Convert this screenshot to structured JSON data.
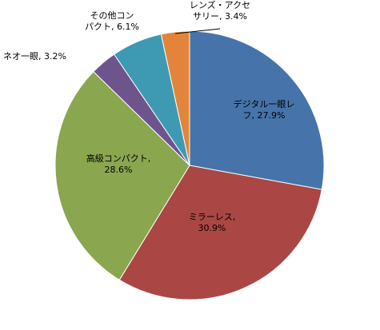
{
  "chart_data": {
    "type": "pie",
    "title": "",
    "slices": [
      {
        "label_lines": [
          "デジタル一眼レ",
          "フ, 27.9%"
        ],
        "category": "デジタル一眼レフ",
        "value": 27.9,
        "color": "#4673A9"
      },
      {
        "label_lines": [
          "ミラーレス,",
          "30.9%"
        ],
        "category": "ミラーレス",
        "value": 30.9,
        "color": "#AA4744"
      },
      {
        "label_lines": [
          "高級コンパクト,",
          "28.6%"
        ],
        "category": "高級コンパクト",
        "value": 28.6,
        "color": "#8AA64E"
      },
      {
        "label_lines": [
          "ネオ一眼, 3.2%"
        ],
        "category": "ネオ一眼",
        "value": 3.2,
        "color": "#6E548D"
      },
      {
        "label_lines": [
          "その他コン",
          "パクト, 6.1%"
        ],
        "category": "その他コンパクト",
        "value": 6.1,
        "color": "#3E9AB2"
      },
      {
        "label_lines": [
          "レンズ・アクセ",
          "サリー, 3.4%"
        ],
        "category": "レンズ・アクセサリー",
        "value": 3.4,
        "color": "#E2853A"
      }
    ]
  }
}
